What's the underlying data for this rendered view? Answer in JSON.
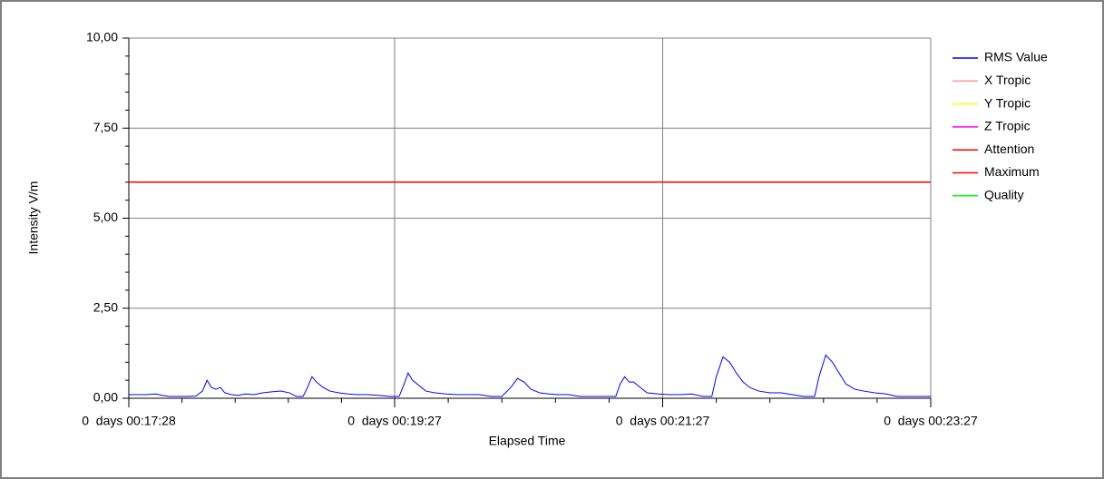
{
  "chart_data": {
    "type": "line",
    "xlabel": "Elapsed Time",
    "ylabel": "Intensity V/m",
    "xlim": [
      1048,
      1407
    ],
    "xticks": [
      {
        "value": 1048,
        "label": "0  days 00:17:28"
      },
      {
        "value": 1167,
        "label": "0  days 00:19:27"
      },
      {
        "value": 1287,
        "label": "0  days 00:21:27"
      },
      {
        "value": 1407,
        "label": "0  days 00:23:27"
      }
    ],
    "ylim": [
      0,
      10
    ],
    "yticks": [
      {
        "value": 0,
        "label": "0,00"
      },
      {
        "value": 2.5,
        "label": "2,50"
      },
      {
        "value": 5,
        "label": "5,00"
      },
      {
        "value": 7.5,
        "label": "7,50"
      },
      {
        "value": 10,
        "label": "10,00"
      }
    ],
    "grid": true,
    "legend": "right",
    "x": [
      1048,
      1052,
      1056,
      1060,
      1063,
      1066,
      1070,
      1074,
      1078,
      1081,
      1083,
      1085,
      1087,
      1089,
      1091,
      1094,
      1097,
      1100,
      1104,
      1108,
      1112,
      1116,
      1120,
      1123,
      1126,
      1128,
      1130,
      1132,
      1135,
      1138,
      1142,
      1146,
      1150,
      1155,
      1160,
      1165,
      1169,
      1171,
      1173,
      1175,
      1178,
      1181,
      1185,
      1190,
      1195,
      1200,
      1205,
      1210,
      1215,
      1219,
      1222,
      1225,
      1228,
      1232,
      1236,
      1240,
      1245,
      1250,
      1255,
      1260,
      1266,
      1268,
      1270,
      1272,
      1274,
      1277,
      1280,
      1285,
      1290,
      1295,
      1300,
      1305,
      1309,
      1311,
      1314,
      1317,
      1320,
      1323,
      1326,
      1330,
      1335,
      1340,
      1345,
      1350,
      1355,
      1357,
      1360,
      1363,
      1366,
      1369,
      1373,
      1377,
      1382,
      1387,
      1392,
      1398,
      1402,
      1407
    ],
    "series": [
      {
        "name": "RMS Value",
        "color": "#0000ff",
        "values": [
          0.1,
          0.1,
          0.1,
          0.12,
          0.08,
          0.05,
          0.05,
          0.05,
          0.06,
          0.2,
          0.5,
          0.3,
          0.25,
          0.3,
          0.15,
          0.1,
          0.08,
          0.12,
          0.1,
          0.15,
          0.18,
          0.2,
          0.15,
          0.05,
          0.05,
          0.3,
          0.6,
          0.45,
          0.3,
          0.2,
          0.15,
          0.12,
          0.1,
          0.1,
          0.08,
          0.05,
          0.05,
          0.35,
          0.7,
          0.5,
          0.35,
          0.2,
          0.15,
          0.12,
          0.1,
          0.1,
          0.1,
          0.05,
          0.05,
          0.3,
          0.55,
          0.45,
          0.25,
          0.15,
          0.12,
          0.1,
          0.1,
          0.05,
          0.05,
          0.05,
          0.05,
          0.4,
          0.6,
          0.45,
          0.45,
          0.3,
          0.15,
          0.12,
          0.1,
          0.1,
          0.12,
          0.05,
          0.05,
          0.6,
          1.15,
          1.0,
          0.7,
          0.45,
          0.3,
          0.2,
          0.15,
          0.15,
          0.1,
          0.05,
          0.05,
          0.6,
          1.2,
          1.0,
          0.7,
          0.4,
          0.25,
          0.2,
          0.15,
          0.12,
          0.05,
          0.05,
          0.05,
          0.05
        ]
      },
      {
        "name": "X Tropic",
        "color": "#ff9999"
      },
      {
        "name": "Y Tropic",
        "color": "#ffff00"
      },
      {
        "name": "Z Tropic",
        "color": "#ff00ff"
      },
      {
        "name": "Attention",
        "color": "#ff0000",
        "value": 6
      },
      {
        "name": "Maximum",
        "color": "#ff0000",
        "value": 6
      },
      {
        "name": "Quality",
        "color": "#00ff00"
      }
    ]
  }
}
